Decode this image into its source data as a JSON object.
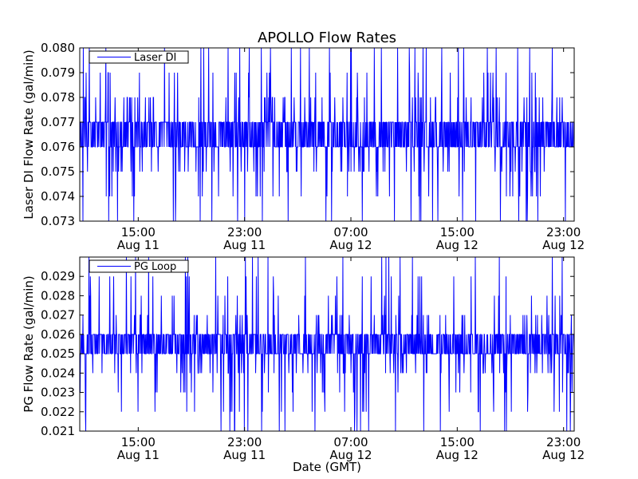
{
  "title": "APOLLO Flow Rates",
  "xlabel": "Date (GMT)",
  "colors": {
    "series": "#0000ff",
    "axes": "#000000",
    "background": "#ffffff"
  },
  "chart_data": [
    {
      "type": "line",
      "series": [
        {
          "name": "Laser DI"
        }
      ],
      "ylabel": "Laser DI Flow Rate (gal/min)",
      "ylim": [
        0.073,
        0.08
      ],
      "yticks": [
        "0.073",
        "0.074",
        "0.075",
        "0.076",
        "0.077",
        "0.078",
        "0.079",
        "0.080"
      ],
      "xlim": [
        "2011-08-11 10:36",
        "2011-08-12 23:48"
      ],
      "xticks": [
        {
          "time": "15:00",
          "date": "Aug 11",
          "at": "2011-08-11 15:00"
        },
        {
          "time": "23:00",
          "date": "Aug 11",
          "at": "2011-08-11 23:00"
        },
        {
          "time": "07:00",
          "date": "Aug 12",
          "at": "2011-08-12 07:00"
        },
        {
          "time": "15:00",
          "date": "Aug 12",
          "at": "2011-08-12 15:00"
        },
        {
          "time": "23:00",
          "date": "Aug 12",
          "at": "2011-08-12 23:00"
        }
      ],
      "baseline_range": [
        0.076,
        0.077
      ],
      "spike_values": [
        0.073,
        0.074,
        0.075,
        0.078,
        0.079,
        0.08
      ],
      "legend": "upper-left",
      "grid": false
    },
    {
      "type": "line",
      "series": [
        {
          "name": "PG Loop"
        }
      ],
      "ylabel": "PG Flow Rate (gal/min)",
      "ylim": [
        0.021,
        0.03
      ],
      "yticks": [
        "0.021",
        "0.022",
        "0.023",
        "0.024",
        "0.025",
        "0.026",
        "0.027",
        "0.028",
        "0.029"
      ],
      "xlim": [
        "2011-08-11 10:36",
        "2011-08-12 23:48"
      ],
      "xticks": [
        {
          "time": "15:00",
          "date": "Aug 11",
          "at": "2011-08-11 15:00"
        },
        {
          "time": "23:00",
          "date": "Aug 11",
          "at": "2011-08-11 23:00"
        },
        {
          "time": "07:00",
          "date": "Aug 12",
          "at": "2011-08-12 07:00"
        },
        {
          "time": "15:00",
          "date": "Aug 12",
          "at": "2011-08-12 15:00"
        },
        {
          "time": "23:00",
          "date": "Aug 12",
          "at": "2011-08-12 23:00"
        }
      ],
      "baseline_range": [
        0.025,
        0.026
      ],
      "spike_values": [
        0.021,
        0.022,
        0.023,
        0.024,
        0.027,
        0.028,
        0.029,
        0.03
      ],
      "legend": "upper-left",
      "grid": false
    }
  ]
}
